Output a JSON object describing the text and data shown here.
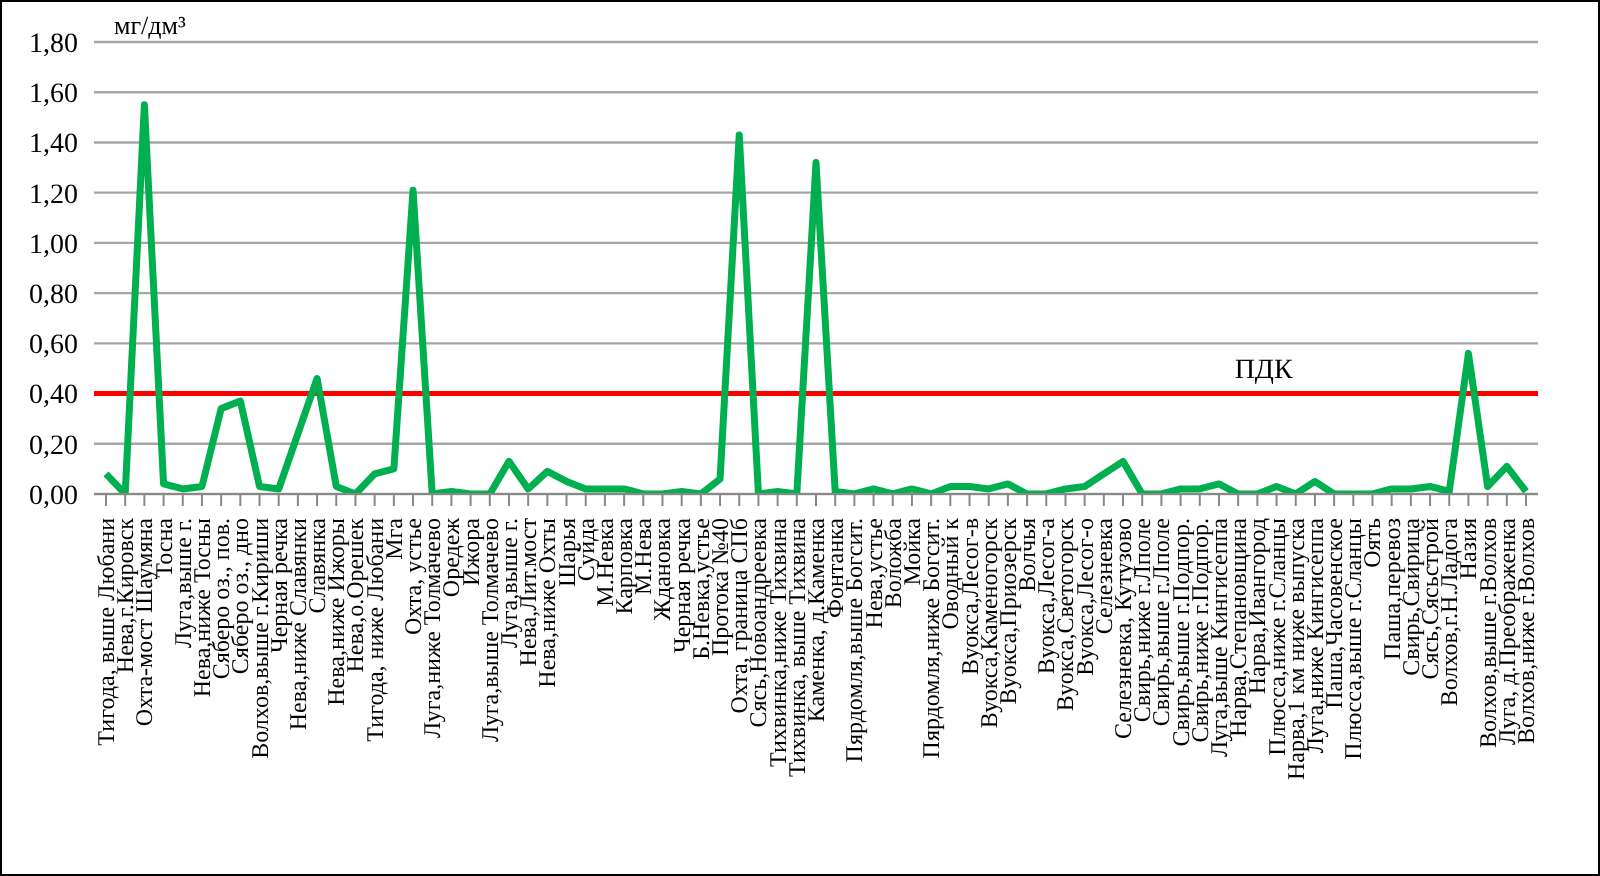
{
  "chart_data": {
    "type": "line",
    "ylabel": "мг/дм³",
    "categories": [
      "Тигода, выше Любани",
      "Нева,г.Кировск",
      "Охта-мост Шаумяна",
      "Тосна",
      "Луга,выше г.",
      "Нева,ниже Тосны",
      "Сяберо оз., пов.",
      "Сяберо оз., дно",
      "Волхов,выше г.Кириши",
      "Черная речка",
      "Нева,ниже Славянки",
      "Славянка",
      "Нева,ниже Ижоры",
      "Нева,о.Орешек",
      "Тигода, ниже Любани",
      "Мга",
      "Охта, устье",
      "Луга,ниже Толмачево",
      "Оредеж",
      "Ижора",
      "Луга,выше Толмачево",
      "Луга,выше г.",
      "Нева,Лит.мост",
      "Нева,ниже Охты",
      "Шарья",
      "Суйда",
      "М.Невка",
      "Карповка",
      "М.Нева",
      "Ждановка",
      "Черная речка",
      "Б.Невка,устье",
      "Протока №40",
      "Охта, граница СПб",
      "Сясь,Новоандреевка",
      "Тихвинка,ниже Тихвина",
      "Тихвинка, выше Тихвина",
      "Каменка, д.Каменка",
      "Фонтанка",
      "Пярдомля,выше Богсит.",
      "Нева,устье",
      "Воложба",
      "Мойка",
      "Пярдомля,ниже Богсит.",
      "Оводный к",
      "Вуокса,Лесог-в",
      "Вуокса,Каменогорск",
      "Вуокса,Приозерск",
      "Волчья",
      "Вуокса,Лесог-а",
      "Вуокса,Светогорск",
      "Вуокса,Лесог-о",
      "Селезневка",
      "Селезневка, Кутузово",
      "Свирь,ниже г.Лполе",
      "Свирь,выше г.Лполе",
      "Свирь,выше г.Подпор.",
      "Свирь,ниже г.Подпор.",
      "Луга,выше Кингисеппа",
      "Нарва,Степановщина",
      "Нарва,Ивангород",
      "Плюсса,ниже г.Сланцы",
      "Нарва,1 км ниже выпуска",
      "Луга,ниже Кингисеппа",
      "Паша,Часовенское",
      "Плюсса,выше г.Сланцы",
      "Оять",
      "Паша,перевоз",
      "Свирь,Свирица",
      "Сясь,Сясьстрой",
      "Волхов,г.Н.Ладога",
      "Назия",
      "Волхов,выше г.Волхов",
      "Луга, д.Преображенка",
      "Волхов,ниже г.Волхов"
    ],
    "series": [
      {
        "color": "#00b050",
        "values": [
          0.08,
          0.0,
          1.55,
          0.04,
          0.02,
          0.03,
          0.34,
          0.37,
          0.03,
          0.02,
          0.24,
          0.46,
          0.03,
          0.0,
          0.08,
          0.1,
          1.21,
          0.0,
          0.01,
          0.0,
          0.0,
          0.13,
          0.02,
          0.09,
          0.05,
          0.02,
          0.02,
          0.02,
          0.0,
          0.0,
          0.01,
          0.0,
          0.06,
          1.43,
          0.0,
          0.01,
          0.0,
          1.32,
          0.01,
          0.0,
          0.02,
          0.0,
          0.02,
          0.0,
          0.03,
          0.03,
          0.02,
          0.04,
          0.0,
          0.0,
          0.02,
          0.03,
          0.08,
          0.13,
          0.0,
          0.0,
          0.02,
          0.02,
          0.04,
          0.0,
          0.0,
          0.03,
          0.0,
          0.05,
          0.0,
          0.0,
          0.0,
          0.02,
          0.02,
          0.03,
          0.01,
          0.56,
          0.03,
          0.11,
          0.01
        ]
      }
    ],
    "ylim": [
      0,
      1.8
    ],
    "yticks": [
      {
        "value": 0,
        "label": "0,00"
      },
      {
        "value": 0.2,
        "label": "0,20"
      },
      {
        "value": 0.4,
        "label": "0,40"
      },
      {
        "value": 0.6,
        "label": "0,60"
      },
      {
        "value": 0.8,
        "label": "0,80"
      },
      {
        "value": 1,
        "label": "1,00"
      },
      {
        "value": 1.2,
        "label": "1,20"
      },
      {
        "value": 1.4,
        "label": "1,40"
      },
      {
        "value": 1.6,
        "label": "1,60"
      },
      {
        "value": 1.8,
        "label": "1,80"
      }
    ],
    "ref_lines": [
      {
        "axis": "y",
        "value": 0.4,
        "label": "ПДК",
        "color": "#ff0000"
      }
    ],
    "grid": "y",
    "marker": "none",
    "line_style": "solid"
  }
}
